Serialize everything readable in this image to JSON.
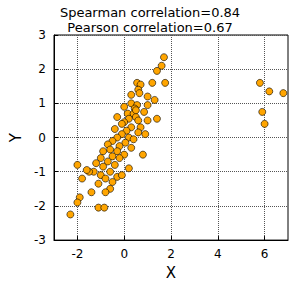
{
  "chart_data": {
    "type": "scatter",
    "title": "Spearman correlation=0.84\nPearson correlation=0.67",
    "xlabel": "X",
    "ylabel": "Y",
    "x": [
      1.7,
      1.6,
      1.4,
      1.75,
      1.2,
      0.55,
      0.7,
      0.6,
      0.65,
      0.3,
      1.0,
      1.3,
      0.3,
      0.55,
      0.0,
      0.45,
      0.15,
      0.85,
      0.4,
      0.5,
      0.2,
      0.6,
      1.0,
      1.4,
      0.0,
      -0.3,
      -0.1,
      0.3,
      0.7,
      0.1,
      -0.4,
      0.6,
      0.9,
      -0.1,
      0.2,
      -0.3,
      0.4,
      -0.5,
      0.05,
      -0.7,
      -0.2,
      0.3,
      0.5,
      -0.6,
      -0.3,
      -0.9,
      0.0,
      -0.5,
      -1.0,
      -0.2,
      -0.7,
      -1.2,
      -0.4,
      -0.9,
      -1.3,
      -1.5,
      -0.6,
      -1.0,
      -0.3,
      -0.8,
      -0.5,
      -1.1,
      -0.6,
      -1.8,
      -2.0,
      -1.4,
      -0.8,
      -1.1,
      -0.85,
      -1.9,
      -2.0,
      -2.3,
      -0.1,
      0.2,
      -1.6,
      0.8,
      1.0,
      5.8,
      6.2,
      6.8,
      5.9,
      6.0
    ],
    "values": [
      2.35,
      2.1,
      1.95,
      1.6,
      1.6,
      1.6,
      1.55,
      1.4,
      1.3,
      1.25,
      1.2,
      1.1,
      1.0,
      0.95,
      0.9,
      0.85,
      0.7,
      0.75,
      0.7,
      0.6,
      0.55,
      0.5,
      0.5,
      0.55,
      0.45,
      0.6,
      0.4,
      0.3,
      0.3,
      0.2,
      0.25,
      0.15,
      0.1,
      0.1,
      0.0,
      0.0,
      -0.05,
      -0.1,
      -0.15,
      -0.2,
      -0.25,
      -0.3,
      0.8,
      -0.35,
      -0.4,
      -0.4,
      -0.5,
      -0.55,
      -0.6,
      -0.6,
      -0.7,
      -0.75,
      -0.8,
      -0.85,
      -1.0,
      -1.0,
      -1.0,
      -1.1,
      -1.15,
      -1.2,
      -1.3,
      -1.35,
      -1.5,
      -1.2,
      -0.8,
      -1.6,
      -1.6,
      -2.05,
      -2.05,
      -1.75,
      -1.9,
      -2.25,
      -1.1,
      -0.9,
      -0.95,
      -0.5,
      0.95,
      1.6,
      1.35,
      1.3,
      0.75,
      0.4
    ],
    "color": "#ffa500",
    "marker": "circle",
    "xlim": [
      -3,
      7
    ],
    "xticks": [
      -2,
      0,
      2,
      4,
      6
    ],
    "ylim": [
      -3,
      3
    ],
    "yticks": [
      -3,
      -2,
      -1,
      0,
      1,
      2,
      3
    ],
    "grid": true
  }
}
